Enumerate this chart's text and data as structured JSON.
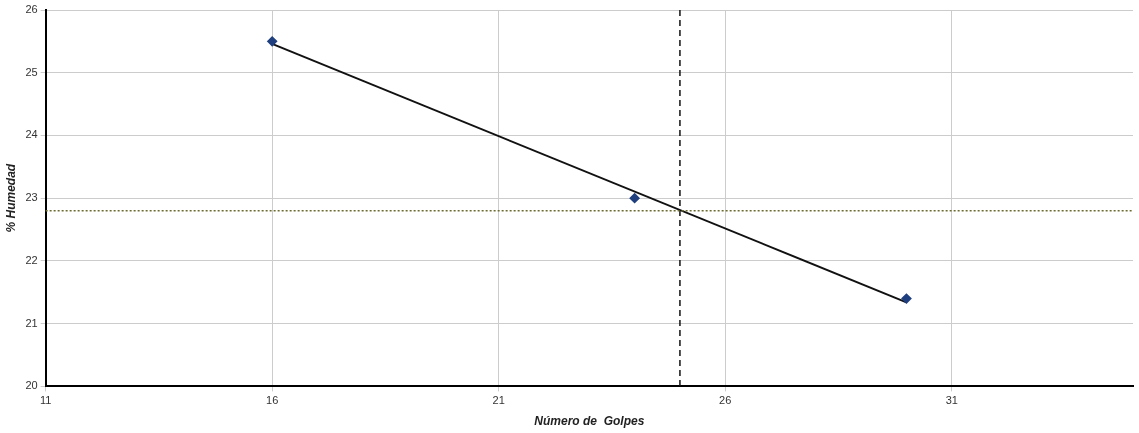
{
  "chart_data": {
    "type": "scatter",
    "xlabel": "Número de  Golpes",
    "ylabel": "% Humedad",
    "xlim": [
      11,
      35
    ],
    "xticks": [
      11,
      16,
      21,
      26,
      31
    ],
    "ylim": [
      20,
      26
    ],
    "yticks": [
      20,
      21,
      22,
      23,
      24,
      25,
      26
    ],
    "grid": true,
    "legend": false,
    "marker": "diamond",
    "series": [
      {
        "color": "#1f3f7f",
        "x": [
          16,
          24,
          30
        ],
        "values": [
          25.5,
          23.0,
          21.4
        ]
      },
      {
        "type": "line",
        "color": "#111111",
        "marker": "none",
        "x": [
          16,
          30
        ],
        "values": [
          25.46,
          21.34
        ]
      }
    ],
    "ref_lines": [
      {
        "axis": "x",
        "value": 25,
        "color": "#111111",
        "line_style": "dashed"
      },
      {
        "axis": "y",
        "value": 22.8,
        "color": "#6b6b2f",
        "line_style": "dotted"
      }
    ]
  }
}
